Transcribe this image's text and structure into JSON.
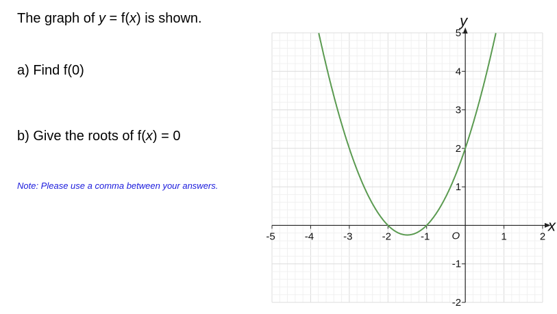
{
  "question": {
    "intro_prefix": "The graph of ",
    "intro_y": "y",
    "intro_mid": " = f(",
    "intro_x": "x",
    "intro_suffix": ") is shown.",
    "part_a": "a) Find f(0)",
    "part_b_prefix": "b) Give the roots of f(",
    "part_b_x": "x",
    "part_b_suffix": ") = 0",
    "note": "Note: Please use a comma between your answers."
  },
  "chart_data": {
    "type": "line",
    "function": "y = x^2 + 3x + 2",
    "xlabel": "x",
    "ylabel": "y",
    "origin_label": "O",
    "xlim": [
      -5,
      2
    ],
    "ylim": [
      -2,
      5
    ],
    "x_ticks": [
      "-5",
      "-4",
      "-3",
      "-2",
      "-1",
      "1",
      "2"
    ],
    "y_ticks": [
      "-2",
      "-1",
      "1",
      "2",
      "3",
      "4",
      "5"
    ],
    "grid": true,
    "minor_grid_step": 0.2,
    "key_points": [
      {
        "x": -2,
        "y": 0
      },
      {
        "x": -1,
        "y": 0
      },
      {
        "x": -1.5,
        "y": -0.25
      },
      {
        "x": 0,
        "y": 2
      }
    ],
    "curve_color": "#5a9a50"
  }
}
